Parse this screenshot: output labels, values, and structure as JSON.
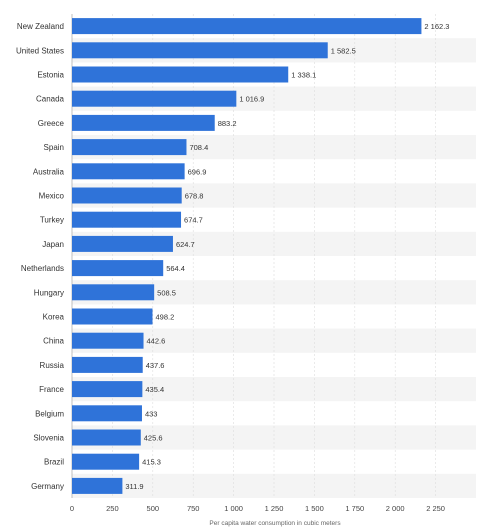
{
  "chart_data": {
    "type": "bar",
    "orientation": "horizontal",
    "categories": [
      "New Zealand",
      "United States",
      "Estonia",
      "Canada",
      "Greece",
      "Spain",
      "Australia",
      "Mexico",
      "Turkey",
      "Japan",
      "Netherlands",
      "Hungary",
      "Korea",
      "China",
      "Russia",
      "France",
      "Belgium",
      "Slovenia",
      "Brazil",
      "Germany"
    ],
    "values": [
      2162.3,
      1582.5,
      1338.1,
      1016.9,
      883.2,
      708.4,
      696.9,
      678.8,
      674.7,
      624.7,
      564.4,
      508.5,
      498.2,
      442.6,
      437.6,
      435.4,
      433,
      425.6,
      415.3,
      311.9
    ],
    "value_labels": [
      "2 162.3",
      "1 582.5",
      "1 338.1",
      "1 016.9",
      "883.2",
      "708.4",
      "696.9",
      "678.8",
      "674.7",
      "624.7",
      "564.4",
      "508.5",
      "498.2",
      "442.6",
      "437.6",
      "435.4",
      "433",
      "425.6",
      "415.3",
      "311.9"
    ],
    "x_ticks": [
      0,
      250,
      500,
      750,
      1000,
      1250,
      1500,
      1750,
      2000,
      2250
    ],
    "x_tick_labels": [
      "0",
      "250",
      "500",
      "750",
      "1 000",
      "1 250",
      "1 500",
      "1 750",
      "2 000",
      "2 250"
    ],
    "xlim": [
      0,
      2500
    ],
    "xlabel": "Per capita water consumption in cubic meters",
    "ylabel": "",
    "title": "",
    "grid": true,
    "bar_color": "#2f73d9",
    "stripe_color": "#f4f4f4"
  }
}
